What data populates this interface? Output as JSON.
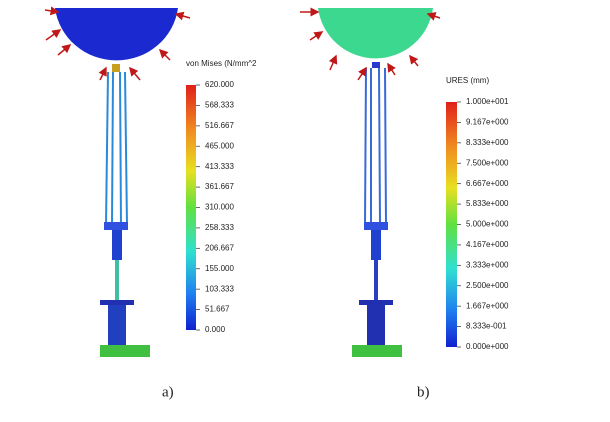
{
  "panels": [
    {
      "label": "a)",
      "legend_title": "von Mises (N/mm^2",
      "ticks": [
        "620.000",
        "568.333",
        "516.667",
        "465.000",
        "413.333",
        "361.667",
        "310.000",
        "258.333",
        "206.667",
        "155.000",
        "103.333",
        "51.667",
        "0.000"
      ]
    },
    {
      "label": "b)",
      "legend_title": "URES (mm)",
      "ticks": [
        "1.000e+001",
        "9.167e+000",
        "8.333e+000",
        "7.500e+000",
        "6.667e+000",
        "5.833e+000",
        "5.000e+000",
        "4.167e+000",
        "3.333e+000",
        "2.500e+000",
        "1.667e+000",
        "8.333e-001",
        "0.000e+000"
      ]
    }
  ]
}
